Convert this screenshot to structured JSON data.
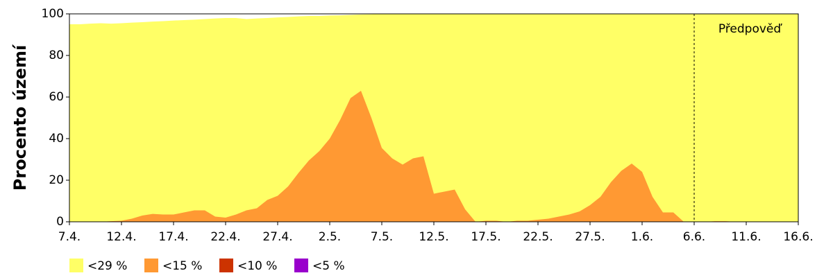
{
  "chart_data": {
    "type": "area",
    "y_label": "Procento území",
    "categories": [
      "7.4.",
      null,
      null,
      null,
      null,
      "12.4.",
      null,
      null,
      null,
      null,
      "17.4.",
      null,
      null,
      null,
      null,
      "22.4.",
      null,
      null,
      null,
      null,
      "27.4.",
      null,
      null,
      null,
      null,
      "2.5.",
      null,
      null,
      null,
      null,
      "7.5.",
      null,
      null,
      null,
      null,
      "12.5.",
      null,
      null,
      null,
      null,
      "17.5.",
      null,
      null,
      null,
      null,
      "22.5.",
      null,
      null,
      null,
      null,
      "27.5.",
      null,
      null,
      null,
      null,
      "1.6.",
      null,
      null,
      null,
      null,
      "6.6.",
      null,
      null,
      null,
      null,
      "11.6.",
      null,
      null,
      null,
      null,
      "16.6."
    ],
    "series": [
      {
        "name": "<29 %",
        "color": "#ffff66",
        "values": [
          95,
          95,
          95.3,
          95.5,
          95.3,
          95.5,
          95.8,
          96,
          96.3,
          96.5,
          96.8,
          97,
          97.2,
          97.5,
          97.8,
          98,
          98,
          97.5,
          97.8,
          98,
          98.3,
          98.5,
          98.8,
          99,
          99,
          99.2,
          99.3,
          99.5,
          99.7,
          99.8,
          100,
          100,
          100,
          100,
          100,
          100,
          100,
          100,
          100,
          100,
          100,
          100,
          100,
          100,
          100,
          100,
          100,
          100,
          100,
          100,
          100,
          100,
          100,
          100,
          100,
          100,
          100,
          100,
          100,
          100,
          100,
          100,
          100,
          100,
          100,
          100,
          100,
          100,
          100,
          100,
          100
        ]
      },
      {
        "name": "<15 %",
        "color": "#ff9933",
        "values": [
          0,
          0,
          0,
          0,
          0.3,
          0.5,
          1.5,
          3,
          3.8,
          3.5,
          3.5,
          4.5,
          5.5,
          5.5,
          2.5,
          2,
          3.5,
          5.5,
          6.5,
          10.5,
          12.5,
          17,
          23.5,
          29.5,
          34,
          40,
          49,
          59.5,
          63,
          50,
          35.5,
          30.5,
          27.5,
          30.5,
          31.5,
          13.5,
          14.5,
          15.5,
          6,
          0,
          0.5,
          0.5,
          0,
          0.5,
          0.5,
          1,
          1.5,
          2.5,
          3.5,
          5,
          8,
          12,
          19,
          24.5,
          28,
          24,
          12,
          4.5,
          4.5,
          0,
          0,
          0,
          0.3,
          0.3,
          0,
          0,
          0,
          0,
          0,
          0,
          0
        ]
      },
      {
        "name": "<10 %",
        "color": "#cc3300",
        "values": [
          0,
          0,
          0,
          0,
          0,
          0,
          0,
          0,
          0,
          0,
          0,
          0,
          0,
          0,
          0,
          0,
          0,
          0,
          0,
          0,
          0,
          0,
          0,
          0,
          0,
          0,
          0,
          0,
          0,
          0,
          0,
          0,
          0,
          0,
          0,
          0,
          0,
          0,
          0,
          0,
          0,
          0,
          0,
          0,
          0,
          0,
          0,
          0,
          0,
          0,
          0,
          0,
          0,
          0,
          0,
          0,
          0,
          0,
          0,
          0,
          0,
          0,
          0,
          0,
          0,
          0,
          0,
          0,
          0,
          0,
          0
        ]
      },
      {
        "name": "<5 %",
        "color": "#9900cc",
        "values": [
          0,
          0,
          0,
          0,
          0,
          0,
          0,
          0,
          0,
          0,
          0,
          0,
          0,
          0,
          0,
          0,
          0,
          0,
          0,
          0,
          0,
          0,
          0,
          0,
          0,
          0,
          0,
          0,
          0,
          0,
          0,
          0,
          0,
          0,
          0,
          0,
          0,
          0,
          0,
          0,
          0,
          0,
          0,
          0,
          0,
          0,
          0,
          0,
          0,
          0,
          0,
          0,
          0,
          0,
          0,
          0,
          0,
          0,
          0,
          0,
          0,
          0,
          0,
          0,
          0,
          0,
          0,
          0,
          0,
          0,
          0
        ]
      }
    ],
    "ylim": [
      0,
      100
    ],
    "yticks": [
      0,
      20,
      40,
      60,
      80,
      100
    ],
    "annotation": {
      "text": "Předpověď",
      "x": "6.6."
    }
  }
}
